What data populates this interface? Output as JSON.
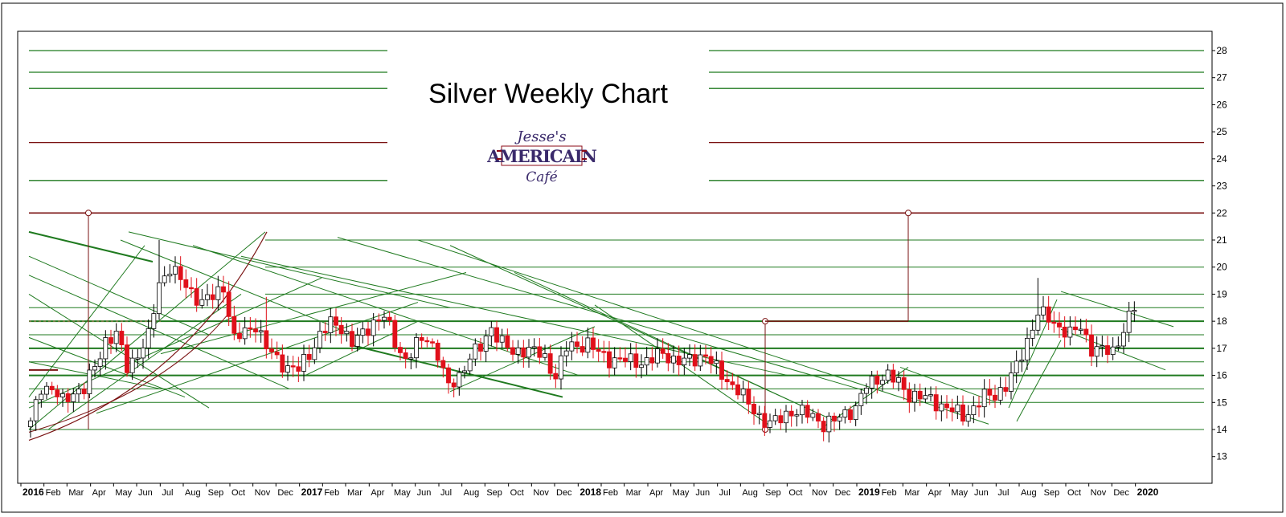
{
  "chart_data": {
    "type": "candlestick",
    "title": "Silver Weekly Chart",
    "ylim": [
      12.2,
      28.6
    ],
    "yticks": [
      13,
      14,
      15,
      16,
      17,
      18,
      19,
      20,
      21,
      22,
      23,
      24,
      25,
      26,
      27,
      28
    ],
    "xlim": [
      0,
      210
    ],
    "x_labels": [
      {
        "x": 0,
        "label": "2016",
        "year": true
      },
      {
        "x": 4.3,
        "label": "Feb"
      },
      {
        "x": 8.6,
        "label": "Mar"
      },
      {
        "x": 13,
        "label": "Apr"
      },
      {
        "x": 17.3,
        "label": "May"
      },
      {
        "x": 21.6,
        "label": "Jun"
      },
      {
        "x": 26,
        "label": "Jul"
      },
      {
        "x": 30.3,
        "label": "Aug"
      },
      {
        "x": 34.6,
        "label": "Sep"
      },
      {
        "x": 39,
        "label": "Oct"
      },
      {
        "x": 43.3,
        "label": "Nov"
      },
      {
        "x": 47.6,
        "label": "Dec"
      },
      {
        "x": 52,
        "label": "2017",
        "year": true
      },
      {
        "x": 56.3,
        "label": "Feb"
      },
      {
        "x": 60.6,
        "label": "Mar"
      },
      {
        "x": 65,
        "label": "Apr"
      },
      {
        "x": 69.3,
        "label": "May"
      },
      {
        "x": 73.6,
        "label": "Jun"
      },
      {
        "x": 78,
        "label": "Jul"
      },
      {
        "x": 82.3,
        "label": "Aug"
      },
      {
        "x": 86.6,
        "label": "Sep"
      },
      {
        "x": 91,
        "label": "Oct"
      },
      {
        "x": 95.3,
        "label": "Nov"
      },
      {
        "x": 99.6,
        "label": "Dec"
      },
      {
        "x": 104,
        "label": "2018",
        "year": true
      },
      {
        "x": 108.3,
        "label": "Feb"
      },
      {
        "x": 112.6,
        "label": "Mar"
      },
      {
        "x": 117,
        "label": "Apr"
      },
      {
        "x": 121.3,
        "label": "May"
      },
      {
        "x": 125.6,
        "label": "Jun"
      },
      {
        "x": 130,
        "label": "Jul"
      },
      {
        "x": 134.3,
        "label": "Aug"
      },
      {
        "x": 138.6,
        "label": "Sep"
      },
      {
        "x": 143,
        "label": "Oct"
      },
      {
        "x": 147.3,
        "label": "Nov"
      },
      {
        "x": 151.6,
        "label": "Dec"
      },
      {
        "x": 156,
        "label": "2019",
        "year": true
      },
      {
        "x": 160.3,
        "label": "Feb"
      },
      {
        "x": 164.6,
        "label": "Mar"
      },
      {
        "x": 169,
        "label": "Apr"
      },
      {
        "x": 173.3,
        "label": "May"
      },
      {
        "x": 177.6,
        "label": "Jun"
      },
      {
        "x": 182,
        "label": "Jul"
      },
      {
        "x": 186.3,
        "label": "Aug"
      },
      {
        "x": 190.6,
        "label": "Sep"
      },
      {
        "x": 195,
        "label": "Oct"
      },
      {
        "x": 199.3,
        "label": "Nov"
      },
      {
        "x": 203.6,
        "label": "Dec"
      },
      {
        "x": 208,
        "label": "2020",
        "year": true
      }
    ],
    "close_anchors": [
      [
        0,
        14.2
      ],
      [
        2,
        15.6
      ],
      [
        4,
        15.5
      ],
      [
        6,
        15.0
      ],
      [
        8,
        15.4
      ],
      [
        10,
        15.5
      ],
      [
        12,
        16.3
      ],
      [
        14,
        17.3
      ],
      [
        16,
        17.5
      ],
      [
        18,
        16.3
      ],
      [
        20,
        16.8
      ],
      [
        22,
        17.4
      ],
      [
        24,
        19.4
      ],
      [
        26,
        20.0
      ],
      [
        28,
        19.5
      ],
      [
        30,
        19.1
      ],
      [
        32,
        18.7
      ],
      [
        34,
        18.9
      ],
      [
        36,
        19.3
      ],
      [
        38,
        17.3
      ],
      [
        40,
        17.6
      ],
      [
        42,
        17.9
      ],
      [
        44,
        17.0
      ],
      [
        46,
        16.6
      ],
      [
        48,
        16.3
      ],
      [
        50,
        16.2
      ],
      [
        52,
        16.8
      ],
      [
        54,
        17.5
      ],
      [
        56,
        17.9
      ],
      [
        58,
        17.8
      ],
      [
        60,
        17.2
      ],
      [
        62,
        17.5
      ],
      [
        64,
        18.0
      ],
      [
        66,
        18.2
      ],
      [
        68,
        17.2
      ],
      [
        70,
        16.6
      ],
      [
        72,
        17.1
      ],
      [
        74,
        17.4
      ],
      [
        76,
        16.8
      ],
      [
        78,
        15.5
      ],
      [
        80,
        16.0
      ],
      [
        82,
        16.7
      ],
      [
        84,
        17.0
      ],
      [
        86,
        17.8
      ],
      [
        88,
        17.2
      ],
      [
        90,
        16.8
      ],
      [
        92,
        17.0
      ],
      [
        94,
        16.9
      ],
      [
        96,
        16.6
      ],
      [
        98,
        16.0
      ],
      [
        100,
        17.0
      ],
      [
        102,
        17.1
      ],
      [
        104,
        17.2
      ],
      [
        106,
        16.8
      ],
      [
        108,
        16.6
      ],
      [
        110,
        16.6
      ],
      [
        112,
        16.5
      ],
      [
        114,
        16.5
      ],
      [
        116,
        16.6
      ],
      [
        118,
        16.8
      ],
      [
        120,
        16.6
      ],
      [
        122,
        16.5
      ],
      [
        124,
        16.6
      ],
      [
        126,
        16.8
      ],
      [
        128,
        16.2
      ],
      [
        130,
        15.8
      ],
      [
        132,
        15.5
      ],
      [
        134,
        14.9
      ],
      [
        136,
        14.5
      ],
      [
        138,
        14.2
      ],
      [
        140,
        14.4
      ],
      [
        142,
        14.7
      ],
      [
        144,
        14.6
      ],
      [
        146,
        14.5
      ],
      [
        148,
        14.2
      ],
      [
        150,
        14.3
      ],
      [
        152,
        14.6
      ],
      [
        154,
        14.8
      ],
      [
        156,
        15.6
      ],
      [
        158,
        15.9
      ],
      [
        160,
        16.0
      ],
      [
        162,
        15.7
      ],
      [
        164,
        15.3
      ],
      [
        166,
        15.2
      ],
      [
        168,
        15.1
      ],
      [
        170,
        14.9
      ],
      [
        172,
        14.7
      ],
      [
        174,
        14.5
      ],
      [
        176,
        14.8
      ],
      [
        178,
        15.2
      ],
      [
        180,
        15.3
      ],
      [
        182,
        15.6
      ],
      [
        184,
        16.3
      ],
      [
        186,
        17.3
      ],
      [
        188,
        18.3
      ],
      [
        190,
        18.1
      ],
      [
        192,
        17.8
      ],
      [
        194,
        17.5
      ],
      [
        196,
        17.8
      ],
      [
        198,
        17.0
      ],
      [
        200,
        16.9
      ],
      [
        202,
        16.9
      ],
      [
        204,
        17.7
      ],
      [
        206,
        18.5
      ]
    ],
    "spikes": [
      [
        24,
        21.0
      ],
      [
        188,
        19.6
      ],
      [
        44,
        18.9
      ],
      [
        138,
        14.0
      ]
    ]
  }
}
